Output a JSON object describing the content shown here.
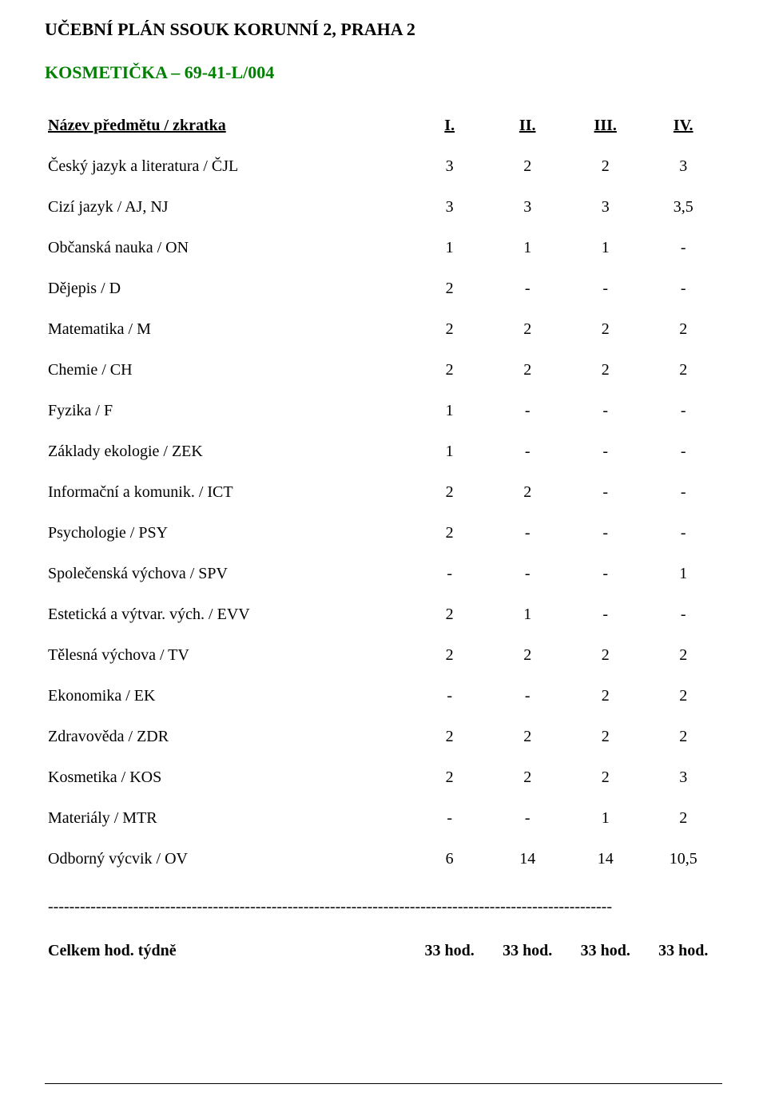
{
  "title": "UČEBNÍ PLÁN SSOUK KORUNNÍ 2, PRAHA 2",
  "subtitle": "KOSMETIČKA – 69-41-L/004",
  "subtitle_color": "#008000",
  "header": {
    "name": "Název předmětu / zkratka",
    "cols": [
      "I.",
      "II.",
      "III.",
      "IV."
    ]
  },
  "rows": [
    {
      "name": "Český jazyk a literatura / ČJL",
      "v": [
        "3",
        "2",
        "2",
        "3"
      ]
    },
    {
      "name": "Cizí jazyk / AJ, NJ",
      "v": [
        "3",
        "3",
        "3",
        "3,5"
      ]
    },
    {
      "name": "Občanská nauka / ON",
      "v": [
        "1",
        "1",
        "1",
        "-"
      ]
    },
    {
      "name": "Dějepis / D",
      "v": [
        "2",
        "-",
        "-",
        "-"
      ]
    },
    {
      "name": "Matematika / M",
      "v": [
        "2",
        "2",
        "2",
        "2"
      ]
    },
    {
      "name": "Chemie / CH",
      "v": [
        "2",
        "2",
        "2",
        "2"
      ]
    },
    {
      "name": "Fyzika / F",
      "v": [
        "1",
        "-",
        "-",
        "-"
      ]
    },
    {
      "name": "Základy ekologie / ZEK",
      "v": [
        "1",
        "-",
        "-",
        "-"
      ]
    },
    {
      "name": "Informační a komunik. / ICT",
      "v": [
        "2",
        "2",
        "-",
        "-"
      ]
    },
    {
      "name": "Psychologie / PSY",
      "v": [
        "2",
        "-",
        "-",
        "-"
      ]
    },
    {
      "name": "Společenská výchova / SPV",
      "v": [
        "-",
        "-",
        "-",
        "1"
      ]
    },
    {
      "name": "Estetická a výtvar. vých. / EVV",
      "v": [
        "2",
        "1",
        "-",
        "-"
      ]
    },
    {
      "name": "Tělesná výchova / TV",
      "v": [
        "2",
        "2",
        "2",
        "2"
      ]
    },
    {
      "name": "Ekonomika / EK",
      "v": [
        "-",
        "-",
        "2",
        "2"
      ]
    },
    {
      "name": "Zdravověda / ZDR",
      "v": [
        "2",
        "2",
        "2",
        "2"
      ]
    },
    {
      "name": "Kosmetika / KOS",
      "v": [
        "2",
        "2",
        "2",
        "3"
      ]
    },
    {
      "name": "Materiály / MTR",
      "v": [
        "-",
        "-",
        "1",
        "2"
      ]
    },
    {
      "name": "Odborný výcvik / OV",
      "v": [
        "6",
        "14",
        "14",
        "10,5"
      ]
    }
  ],
  "separator": "----------------------------------------------------------------------------------------------------------",
  "totals": {
    "label": "Celkem hod. týdně",
    "v": [
      "33 hod.",
      "33 hod.",
      "33 hod.",
      "33 hod."
    ]
  },
  "font": {
    "family": "Times New Roman",
    "title_size_pt": 16,
    "body_size_pt": 15
  },
  "colors": {
    "text": "#000000",
    "background": "#ffffff",
    "subtitle": "#008000"
  }
}
